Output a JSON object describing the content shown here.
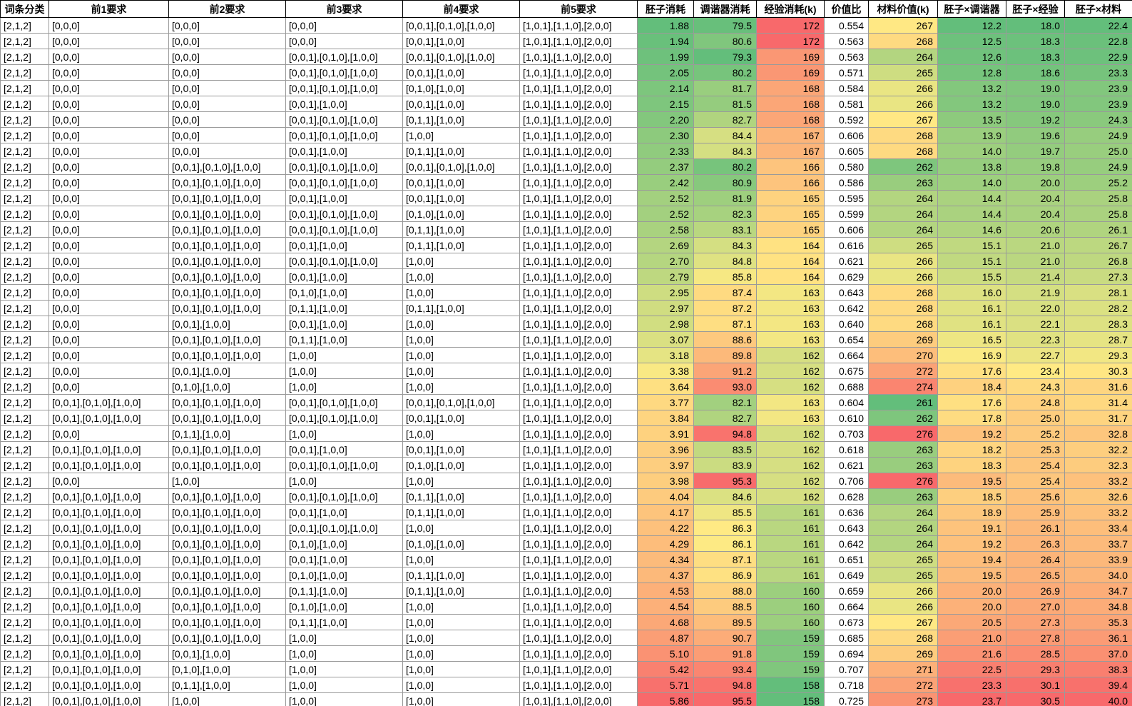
{
  "table": {
    "color_scale": {
      "min_color": "#63BE7B",
      "mid_color": "#FFEB84",
      "max_color": "#F8696B"
    },
    "grid_line_color": "#9a9a9a",
    "header_border_color": "#000000",
    "columns": [
      {
        "label": "词条分类",
        "align": "left",
        "color_scale": false
      },
      {
        "label": "前1要求",
        "align": "left",
        "color_scale": false
      },
      {
        "label": "前2要求",
        "align": "left",
        "color_scale": false
      },
      {
        "label": "前3要求",
        "align": "left",
        "color_scale": false
      },
      {
        "label": "前4要求",
        "align": "left",
        "color_scale": false
      },
      {
        "label": "前5要求",
        "align": "left",
        "color_scale": false
      },
      {
        "label": "胚子消耗",
        "align": "right",
        "color_scale": true
      },
      {
        "label": "调谐器消耗",
        "align": "right",
        "color_scale": true
      },
      {
        "label": "经验消耗(k)",
        "align": "right",
        "color_scale": true
      },
      {
        "label": "价值比",
        "align": "right",
        "color_scale": false
      },
      {
        "label": "材料价值(k)",
        "align": "right",
        "color_scale": true
      },
      {
        "label": "胚子×调谐器",
        "align": "right",
        "color_scale": true
      },
      {
        "label": "胚子×经验",
        "align": "right",
        "color_scale": true
      },
      {
        "label": "胚子×材料",
        "align": "right",
        "color_scale": true
      }
    ],
    "rows": [
      [
        "[2,1,2]",
        "[0,0,0]",
        "[0,0,0]",
        "[0,0,0]",
        "[0,0,1],[0,1,0],[1,0,0]",
        "[1,0,1],[1,1,0],[2,0,0]",
        "1.88",
        "79.5",
        "172",
        "0.554",
        "267",
        "12.2",
        "18.0",
        "22.4"
      ],
      [
        "[2,1,2]",
        "[0,0,0]",
        "[0,0,0]",
        "[0,0,0]",
        "[0,0,1],[1,0,0]",
        "[1,0,1],[1,1,0],[2,0,0]",
        "1.94",
        "80.6",
        "172",
        "0.563",
        "268",
        "12.5",
        "18.3",
        "22.8"
      ],
      [
        "[2,1,2]",
        "[0,0,0]",
        "[0,0,0]",
        "[0,0,1],[0,1,0],[1,0,0]",
        "[0,0,1],[0,1,0],[1,0,0]",
        "[1,0,1],[1,1,0],[2,0,0]",
        "1.99",
        "79.3",
        "169",
        "0.563",
        "264",
        "12.6",
        "18.3",
        "22.9"
      ],
      [
        "[2,1,2]",
        "[0,0,0]",
        "[0,0,0]",
        "[0,0,1],[0,1,0],[1,0,0]",
        "[0,0,1],[1,0,0]",
        "[1,0,1],[1,1,0],[2,0,0]",
        "2.05",
        "80.2",
        "169",
        "0.571",
        "265",
        "12.8",
        "18.6",
        "23.3"
      ],
      [
        "[2,1,2]",
        "[0,0,0]",
        "[0,0,0]",
        "[0,0,1],[0,1,0],[1,0,0]",
        "[0,1,0],[1,0,0]",
        "[1,0,1],[1,1,0],[2,0,0]",
        "2.14",
        "81.7",
        "168",
        "0.584",
        "266",
        "13.2",
        "19.0",
        "23.9"
      ],
      [
        "[2,1,2]",
        "[0,0,0]",
        "[0,0,0]",
        "[0,0,1],[1,0,0]",
        "[0,0,1],[1,0,0]",
        "[1,0,1],[1,1,0],[2,0,0]",
        "2.15",
        "81.5",
        "168",
        "0.581",
        "266",
        "13.2",
        "19.0",
        "23.9"
      ],
      [
        "[2,1,2]",
        "[0,0,0]",
        "[0,0,0]",
        "[0,0,1],[0,1,0],[1,0,0]",
        "[0,1,1],[1,0,0]",
        "[1,0,1],[1,1,0],[2,0,0]",
        "2.20",
        "82.7",
        "168",
        "0.592",
        "267",
        "13.5",
        "19.2",
        "24.3"
      ],
      [
        "[2,1,2]",
        "[0,0,0]",
        "[0,0,0]",
        "[0,0,1],[0,1,0],[1,0,0]",
        "[1,0,0]",
        "[1,0,1],[1,1,0],[2,0,0]",
        "2.30",
        "84.4",
        "167",
        "0.606",
        "268",
        "13.9",
        "19.6",
        "24.9"
      ],
      [
        "[2,1,2]",
        "[0,0,0]",
        "[0,0,0]",
        "[0,0,1],[1,0,0]",
        "[0,1,1],[1,0,0]",
        "[1,0,1],[1,1,0],[2,0,0]",
        "2.33",
        "84.3",
        "167",
        "0.605",
        "268",
        "14.0",
        "19.7",
        "25.0"
      ],
      [
        "[2,1,2]",
        "[0,0,0]",
        "[0,0,1],[0,1,0],[1,0,0]",
        "[0,0,1],[0,1,0],[1,0,0]",
        "[0,0,1],[0,1,0],[1,0,0]",
        "[1,0,1],[1,1,0],[2,0,0]",
        "2.37",
        "80.2",
        "166",
        "0.580",
        "262",
        "13.8",
        "19.8",
        "24.9"
      ],
      [
        "[2,1,2]",
        "[0,0,0]",
        "[0,0,1],[0,1,0],[1,0,0]",
        "[0,0,1],[0,1,0],[1,0,0]",
        "[0,0,1],[1,0,0]",
        "[1,0,1],[1,1,0],[2,0,0]",
        "2.42",
        "80.9",
        "166",
        "0.586",
        "263",
        "14.0",
        "20.0",
        "25.2"
      ],
      [
        "[2,1,2]",
        "[0,0,0]",
        "[0,0,1],[0,1,0],[1,0,0]",
        "[0,0,1],[1,0,0]",
        "[0,0,1],[1,0,0]",
        "[1,0,1],[1,1,0],[2,0,0]",
        "2.52",
        "81.9",
        "165",
        "0.595",
        "264",
        "14.4",
        "20.4",
        "25.8"
      ],
      [
        "[2,1,2]",
        "[0,0,0]",
        "[0,0,1],[0,1,0],[1,0,0]",
        "[0,0,1],[0,1,0],[1,0,0]",
        "[0,1,0],[1,0,0]",
        "[1,0,1],[1,1,0],[2,0,0]",
        "2.52",
        "82.3",
        "165",
        "0.599",
        "264",
        "14.4",
        "20.4",
        "25.8"
      ],
      [
        "[2,1,2]",
        "[0,0,0]",
        "[0,0,1],[0,1,0],[1,0,0]",
        "[0,0,1],[0,1,0],[1,0,0]",
        "[0,1,1],[1,0,0]",
        "[1,0,1],[1,1,0],[2,0,0]",
        "2.58",
        "83.1",
        "165",
        "0.606",
        "264",
        "14.6",
        "20.6",
        "26.1"
      ],
      [
        "[2,1,2]",
        "[0,0,0]",
        "[0,0,1],[0,1,0],[1,0,0]",
        "[0,0,1],[1,0,0]",
        "[0,1,1],[1,0,0]",
        "[1,0,1],[1,1,0],[2,0,0]",
        "2.69",
        "84.3",
        "164",
        "0.616",
        "265",
        "15.1",
        "21.0",
        "26.7"
      ],
      [
        "[2,1,2]",
        "[0,0,0]",
        "[0,0,1],[0,1,0],[1,0,0]",
        "[0,0,1],[0,1,0],[1,0,0]",
        "[1,0,0]",
        "[1,0,1],[1,1,0],[2,0,0]",
        "2.70",
        "84.8",
        "164",
        "0.621",
        "266",
        "15.1",
        "21.0",
        "26.8"
      ],
      [
        "[2,1,2]",
        "[0,0,0]",
        "[0,0,1],[0,1,0],[1,0,0]",
        "[0,0,1],[1,0,0]",
        "[1,0,0]",
        "[1,0,1],[1,1,0],[2,0,0]",
        "2.79",
        "85.8",
        "164",
        "0.629",
        "266",
        "15.5",
        "21.4",
        "27.3"
      ],
      [
        "[2,1,2]",
        "[0,0,0]",
        "[0,0,1],[0,1,0],[1,0,0]",
        "[0,1,0],[1,0,0]",
        "[1,0,0]",
        "[1,0,1],[1,1,0],[2,0,0]",
        "2.95",
        "87.4",
        "163",
        "0.643",
        "268",
        "16.0",
        "21.9",
        "28.1"
      ],
      [
        "[2,1,2]",
        "[0,0,0]",
        "[0,0,1],[0,1,0],[1,0,0]",
        "[0,1,1],[1,0,0]",
        "[0,1,1],[1,0,0]",
        "[1,0,1],[1,1,0],[2,0,0]",
        "2.97",
        "87.2",
        "163",
        "0.642",
        "268",
        "16.1",
        "22.0",
        "28.2"
      ],
      [
        "[2,1,2]",
        "[0,0,0]",
        "[0,0,1],[1,0,0]",
        "[0,0,1],[1,0,0]",
        "[1,0,0]",
        "[1,0,1],[1,1,0],[2,0,0]",
        "2.98",
        "87.1",
        "163",
        "0.640",
        "268",
        "16.1",
        "22.1",
        "28.3"
      ],
      [
        "[2,1,2]",
        "[0,0,0]",
        "[0,0,1],[0,1,0],[1,0,0]",
        "[0,1,1],[1,0,0]",
        "[1,0,0]",
        "[1,0,1],[1,1,0],[2,0,0]",
        "3.07",
        "88.6",
        "163",
        "0.654",
        "269",
        "16.5",
        "22.3",
        "28.7"
      ],
      [
        "[2,1,2]",
        "[0,0,0]",
        "[0,0,1],[0,1,0],[1,0,0]",
        "[1,0,0]",
        "[1,0,0]",
        "[1,0,1],[1,1,0],[2,0,0]",
        "3.18",
        "89.8",
        "162",
        "0.664",
        "270",
        "16.9",
        "22.7",
        "29.3"
      ],
      [
        "[2,1,2]",
        "[0,0,0]",
        "[0,0,1],[1,0,0]",
        "[1,0,0]",
        "[1,0,0]",
        "[1,0,1],[1,1,0],[2,0,0]",
        "3.38",
        "91.2",
        "162",
        "0.675",
        "272",
        "17.6",
        "23.4",
        "30.3"
      ],
      [
        "[2,1,2]",
        "[0,0,0]",
        "[0,1,0],[1,0,0]",
        "[1,0,0]",
        "[1,0,0]",
        "[1,0,1],[1,1,0],[2,0,0]",
        "3.64",
        "93.0",
        "162",
        "0.688",
        "274",
        "18.4",
        "24.3",
        "31.6"
      ],
      [
        "[2,1,2]",
        "[0,0,1],[0,1,0],[1,0,0]",
        "[0,0,1],[0,1,0],[1,0,0]",
        "[0,0,1],[0,1,0],[1,0,0]",
        "[0,0,1],[0,1,0],[1,0,0]",
        "[1,0,1],[1,1,0],[2,0,0]",
        "3.77",
        "82.1",
        "163",
        "0.604",
        "261",
        "17.6",
        "24.8",
        "31.4"
      ],
      [
        "[2,1,2]",
        "[0,0,1],[0,1,0],[1,0,0]",
        "[0,0,1],[0,1,0],[1,0,0]",
        "[0,0,1],[0,1,0],[1,0,0]",
        "[0,0,1],[1,0,0]",
        "[1,0,1],[1,1,0],[2,0,0]",
        "3.84",
        "82.7",
        "163",
        "0.610",
        "262",
        "17.8",
        "25.0",
        "31.7"
      ],
      [
        "[2,1,2]",
        "[0,0,0]",
        "[0,1,1],[1,0,0]",
        "[1,0,0]",
        "[1,0,0]",
        "[1,0,1],[1,1,0],[2,0,0]",
        "3.91",
        "94.8",
        "162",
        "0.703",
        "276",
        "19.2",
        "25.2",
        "32.8"
      ],
      [
        "[2,1,2]",
        "[0,0,1],[0,1,0],[1,0,0]",
        "[0,0,1],[0,1,0],[1,0,0]",
        "[0,0,1],[1,0,0]",
        "[0,0,1],[1,0,0]",
        "[1,0,1],[1,1,0],[2,0,0]",
        "3.96",
        "83.5",
        "162",
        "0.618",
        "263",
        "18.2",
        "25.3",
        "32.2"
      ],
      [
        "[2,1,2]",
        "[0,0,1],[0,1,0],[1,0,0]",
        "[0,0,1],[0,1,0],[1,0,0]",
        "[0,0,1],[0,1,0],[1,0,0]",
        "[0,1,0],[1,0,0]",
        "[1,0,1],[1,1,0],[2,0,0]",
        "3.97",
        "83.9",
        "162",
        "0.621",
        "263",
        "18.3",
        "25.4",
        "32.3"
      ],
      [
        "[2,1,2]",
        "[0,0,0]",
        "[1,0,0]",
        "[1,0,0]",
        "[1,0,0]",
        "[1,0,1],[1,1,0],[2,0,0]",
        "3.98",
        "95.3",
        "162",
        "0.706",
        "276",
        "19.5",
        "25.4",
        "33.2"
      ],
      [
        "[2,1,2]",
        "[0,0,1],[0,1,0],[1,0,0]",
        "[0,0,1],[0,1,0],[1,0,0]",
        "[0,0,1],[0,1,0],[1,0,0]",
        "[0,1,1],[1,0,0]",
        "[1,0,1],[1,1,0],[2,0,0]",
        "4.04",
        "84.6",
        "162",
        "0.628",
        "263",
        "18.5",
        "25.6",
        "32.6"
      ],
      [
        "[2,1,2]",
        "[0,0,1],[0,1,0],[1,0,0]",
        "[0,0,1],[0,1,0],[1,0,0]",
        "[0,0,1],[1,0,0]",
        "[0,1,1],[1,0,0]",
        "[1,0,1],[1,1,0],[2,0,0]",
        "4.17",
        "85.5",
        "161",
        "0.636",
        "264",
        "18.9",
        "25.9",
        "33.2"
      ],
      [
        "[2,1,2]",
        "[0,0,1],[0,1,0],[1,0,0]",
        "[0,0,1],[0,1,0],[1,0,0]",
        "[0,0,1],[0,1,0],[1,0,0]",
        "[1,0,0]",
        "[1,0,1],[1,1,0],[2,0,0]",
        "4.22",
        "86.3",
        "161",
        "0.643",
        "264",
        "19.1",
        "26.1",
        "33.4"
      ],
      [
        "[2,1,2]",
        "[0,0,1],[0,1,0],[1,0,0]",
        "[0,0,1],[0,1,0],[1,0,0]",
        "[0,1,0],[1,0,0]",
        "[0,1,0],[1,0,0]",
        "[1,0,1],[1,1,0],[2,0,0]",
        "4.29",
        "86.1",
        "161",
        "0.642",
        "264",
        "19.2",
        "26.3",
        "33.7"
      ],
      [
        "[2,1,2]",
        "[0,0,1],[0,1,0],[1,0,0]",
        "[0,0,1],[0,1,0],[1,0,0]",
        "[0,0,1],[1,0,0]",
        "[1,0,0]",
        "[1,0,1],[1,1,0],[2,0,0]",
        "4.34",
        "87.1",
        "161",
        "0.651",
        "265",
        "19.4",
        "26.4",
        "33.9"
      ],
      [
        "[2,1,2]",
        "[0,0,1],[0,1,0],[1,0,0]",
        "[0,0,1],[0,1,0],[1,0,0]",
        "[0,1,0],[1,0,0]",
        "[0,1,1],[1,0,0]",
        "[1,0,1],[1,1,0],[2,0,0]",
        "4.37",
        "86.9",
        "161",
        "0.649",
        "265",
        "19.5",
        "26.5",
        "34.0"
      ],
      [
        "[2,1,2]",
        "[0,0,1],[0,1,0],[1,0,0]",
        "[0,0,1],[0,1,0],[1,0,0]",
        "[0,1,1],[1,0,0]",
        "[0,1,1],[1,0,0]",
        "[1,0,1],[1,1,0],[2,0,0]",
        "4.53",
        "88.0",
        "160",
        "0.659",
        "266",
        "20.0",
        "26.9",
        "34.7"
      ],
      [
        "[2,1,2]",
        "[0,0,1],[0,1,0],[1,0,0]",
        "[0,0,1],[0,1,0],[1,0,0]",
        "[0,1,0],[1,0,0]",
        "[1,0,0]",
        "[1,0,1],[1,1,0],[2,0,0]",
        "4.54",
        "88.5",
        "160",
        "0.664",
        "266",
        "20.0",
        "27.0",
        "34.8"
      ],
      [
        "[2,1,2]",
        "[0,0,1],[0,1,0],[1,0,0]",
        "[0,0,1],[0,1,0],[1,0,0]",
        "[0,1,1],[1,0,0]",
        "[1,0,0]",
        "[1,0,1],[1,1,0],[2,0,0]",
        "4.68",
        "89.5",
        "160",
        "0.673",
        "267",
        "20.5",
        "27.3",
        "35.3"
      ],
      [
        "[2,1,2]",
        "[0,0,1],[0,1,0],[1,0,0]",
        "[0,0,1],[0,1,0],[1,0,0]",
        "[1,0,0]",
        "[1,0,0]",
        "[1,0,1],[1,1,0],[2,0,0]",
        "4.87",
        "90.7",
        "159",
        "0.685",
        "268",
        "21.0",
        "27.8",
        "36.1"
      ],
      [
        "[2,1,2]",
        "[0,0,1],[0,1,0],[1,0,0]",
        "[0,0,1],[1,0,0]",
        "[1,0,0]",
        "[1,0,0]",
        "[1,0,1],[1,1,0],[2,0,0]",
        "5.10",
        "91.8",
        "159",
        "0.694",
        "269",
        "21.6",
        "28.5",
        "37.0"
      ],
      [
        "[2,1,2]",
        "[0,0,1],[0,1,0],[1,0,0]",
        "[0,1,0],[1,0,0]",
        "[1,0,0]",
        "[1,0,0]",
        "[1,0,1],[1,1,0],[2,0,0]",
        "5.42",
        "93.4",
        "159",
        "0.707",
        "271",
        "22.5",
        "29.3",
        "38.3"
      ],
      [
        "[2,1,2]",
        "[0,0,1],[0,1,0],[1,0,0]",
        "[0,1,1],[1,0,0]",
        "[1,0,0]",
        "[1,0,0]",
        "[1,0,1],[1,1,0],[2,0,0]",
        "5.71",
        "94.8",
        "158",
        "0.718",
        "272",
        "23.3",
        "30.1",
        "39.4"
      ],
      [
        "[2,1,2]",
        "[0,0,1],[0,1,0],[1,0,0]",
        "[1,0,0]",
        "[1,0,0]",
        "[1,0,0]",
        "[1,0,1],[1,1,0],[2,0,0]",
        "5.86",
        "95.5",
        "158",
        "0.725",
        "273",
        "23.7",
        "30.5",
        "40.0"
      ]
    ]
  }
}
